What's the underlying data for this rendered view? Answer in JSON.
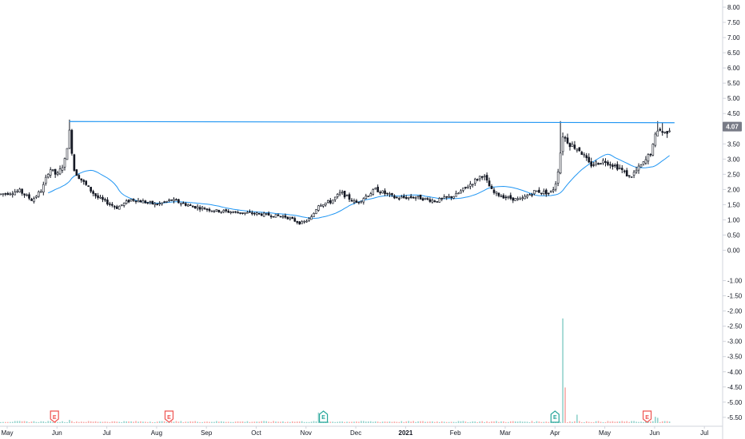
{
  "chart_data": {
    "type": "candlestick",
    "ylim": [
      -5.75,
      8.25
    ],
    "y_ticks": [
      "8.00",
      "7.50",
      "7.00",
      "6.50",
      "6.00",
      "5.50",
      "5.00",
      "4.50",
      "4.00",
      "3.50",
      "3.00",
      "2.50",
      "2.00",
      "1.50",
      "1.00",
      "0.50",
      "0.00",
      "-1.00",
      "-1.50",
      "-2.00",
      "-2.50",
      "-3.00",
      "-3.50",
      "-4.00",
      "-4.50",
      "-5.00",
      "-5.50"
    ],
    "x_ticks": [
      "May",
      "Jun",
      "Jul",
      "Aug",
      "Sep",
      "Oct",
      "Nov",
      "Dec",
      "2021",
      "Feb",
      "Mar",
      "Apr",
      "May",
      "Jun",
      "Jul"
    ],
    "last_price": 4.07,
    "last_price_label": "4.07",
    "resistance_level": 4.25,
    "price_anchors": [
      {
        "m": -0.3,
        "p": 1.8
      },
      {
        "m": 0.25,
        "p": 1.95
      },
      {
        "m": 0.5,
        "p": 1.65
      },
      {
        "m": 0.7,
        "p": 2.0
      },
      {
        "m": 0.85,
        "p": 2.7
      },
      {
        "m": 1.0,
        "p": 2.45
      },
      {
        "m": 1.15,
        "p": 2.9
      },
      {
        "m": 1.25,
        "p": 3.9
      },
      {
        "m": 1.35,
        "p": 2.6
      },
      {
        "m": 1.55,
        "p": 2.2
      },
      {
        "m": 1.8,
        "p": 1.75
      },
      {
        "m": 2.2,
        "p": 1.4
      },
      {
        "m": 2.5,
        "p": 1.68
      },
      {
        "m": 3.0,
        "p": 1.5
      },
      {
        "m": 3.3,
        "p": 1.65
      },
      {
        "m": 3.7,
        "p": 1.45
      },
      {
        "m": 4.2,
        "p": 1.3
      },
      {
        "m": 5.0,
        "p": 1.2
      },
      {
        "m": 5.6,
        "p": 1.1
      },
      {
        "m": 5.9,
        "p": 0.88
      },
      {
        "m": 6.1,
        "p": 1.05
      },
      {
        "m": 6.25,
        "p": 1.5
      },
      {
        "m": 6.5,
        "p": 1.6
      },
      {
        "m": 6.7,
        "p": 1.9
      },
      {
        "m": 7.0,
        "p": 1.55
      },
      {
        "m": 7.4,
        "p": 2.0
      },
      {
        "m": 7.8,
        "p": 1.72
      },
      {
        "m": 8.2,
        "p": 1.75
      },
      {
        "m": 8.6,
        "p": 1.62
      },
      {
        "m": 9.0,
        "p": 1.8
      },
      {
        "m": 9.4,
        "p": 2.3
      },
      {
        "m": 9.55,
        "p": 2.5
      },
      {
        "m": 9.75,
        "p": 1.9
      },
      {
        "m": 10.0,
        "p": 1.75
      },
      {
        "m": 10.3,
        "p": 1.65
      },
      {
        "m": 10.6,
        "p": 1.95
      },
      {
        "m": 10.9,
        "p": 1.88
      },
      {
        "m": 11.0,
        "p": 2.1
      },
      {
        "m": 11.08,
        "p": 2.8
      },
      {
        "m": 11.15,
        "p": 3.8
      },
      {
        "m": 11.3,
        "p": 3.5
      },
      {
        "m": 11.5,
        "p": 3.3
      },
      {
        "m": 11.7,
        "p": 2.8
      },
      {
        "m": 12.0,
        "p": 2.95
      },
      {
        "m": 12.3,
        "p": 2.7
      },
      {
        "m": 12.5,
        "p": 2.4
      },
      {
        "m": 12.8,
        "p": 2.9
      },
      {
        "m": 12.95,
        "p": 3.3
      },
      {
        "m": 13.05,
        "p": 4.0
      },
      {
        "m": 13.2,
        "p": 3.85
      },
      {
        "m": 13.3,
        "p": 4.0
      }
    ],
    "volume_spikes": [
      {
        "m": 11.17,
        "v": 1.0
      },
      {
        "m": 11.22,
        "v": 0.34
      },
      {
        "m": 11.45,
        "v": 0.08
      },
      {
        "m": 6.25,
        "v": 0.1
      },
      {
        "m": 13.0,
        "v": 0.06
      },
      {
        "m": 13.08,
        "v": 0.05
      },
      {
        "m": 1.25,
        "v": 0.03
      }
    ],
    "earnings_markers": [
      {
        "m": 0.95,
        "kind": "past",
        "label": "E"
      },
      {
        "m": 3.25,
        "kind": "past",
        "label": "E"
      },
      {
        "m": 6.35,
        "kind": "future",
        "label": "E"
      },
      {
        "m": 11.0,
        "kind": "future",
        "label": "E"
      },
      {
        "m": 12.85,
        "kind": "past",
        "label": "E"
      }
    ],
    "colors": {
      "candle": "#131722",
      "ma": "#2196f3",
      "resistance": "#2196f3",
      "volume_up": "#26a69a",
      "volume_down": "#ef5350",
      "earn_past": "#ef5350",
      "earn_future": "#26a69a",
      "price_badge": "#787b86"
    }
  }
}
